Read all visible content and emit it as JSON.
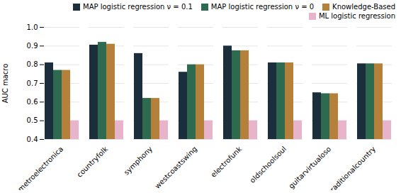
{
  "chart_data": {
    "type": "bar",
    "categories": [
      "metroelectronica",
      "countryfolk",
      "symphony",
      "westcoastswing",
      "electrofunk",
      "oldschoolsoul",
      "guitarvirtualoso",
      "traditionalcountry"
    ],
    "series": [
      {
        "name": "MAP logistic regression ν = 0.1",
        "color": "#1a2e3b",
        "values": [
          0.81,
          0.905,
          0.86,
          0.76,
          0.9,
          0.81,
          0.65,
          0.805
        ]
      },
      {
        "name": "MAP logistic regression ν = 0",
        "color": "#2d6a4f",
        "values": [
          0.77,
          0.92,
          0.62,
          0.8,
          0.875,
          0.81,
          0.645,
          0.805
        ]
      },
      {
        "name": "Knowledge-Based",
        "color": "#b5813a",
        "values": [
          0.77,
          0.91,
          0.62,
          0.8,
          0.875,
          0.81,
          0.645,
          0.805
        ]
      },
      {
        "name": "ML logistic regression",
        "color": "#e8b4cc",
        "values": [
          0.5,
          0.5,
          0.5,
          0.5,
          0.5,
          0.5,
          0.5,
          0.5
        ]
      }
    ],
    "ylabel": "AUC macro",
    "ylim": [
      0.4,
      1.0
    ],
    "yticks": [
      0.4,
      0.5,
      0.6,
      0.7,
      0.8,
      0.9,
      {
        "value": 1.0,
        "label": "1.0"
      }
    ],
    "grid": true,
    "legend": "upper right"
  }
}
